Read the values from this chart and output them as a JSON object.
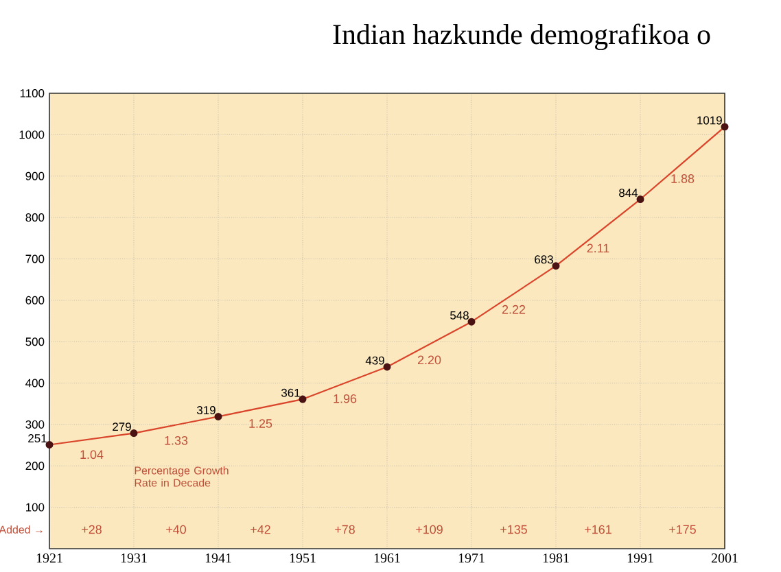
{
  "chart_data": {
    "type": "line",
    "title": "Indian hazkunde demografikoa o",
    "x": [
      1921,
      1931,
      1941,
      1951,
      1961,
      1971,
      1981,
      1991,
      2001
    ],
    "series": [
      {
        "color": "#d9442a",
        "values": [
          251,
          279,
          319,
          361,
          439,
          548,
          683,
          844,
          1019
        ]
      }
    ],
    "xlim": [
      1921,
      2001
    ],
    "xticks": [
      1921,
      1931,
      1941,
      1951,
      1961,
      1971,
      1981,
      1991,
      2001
    ],
    "ylim": [
      0,
      1100
    ],
    "yticks": [
      100,
      200,
      300,
      400,
      500,
      600,
      700,
      800,
      900,
      1000,
      1100
    ],
    "grid": true,
    "marker": "circle",
    "line_style": "solid",
    "data_labels": true,
    "annotations": [
      "1.04",
      "1.33",
      "1.25",
      "1.96",
      "2.20",
      "2.22",
      "2.11",
      "1.88",
      "Percentage Growth Rate in Decade",
      "Added →",
      "+28",
      "+40",
      "+42",
      "+78",
      "+109",
      "+135",
      "+161",
      "+175"
    ]
  }
}
